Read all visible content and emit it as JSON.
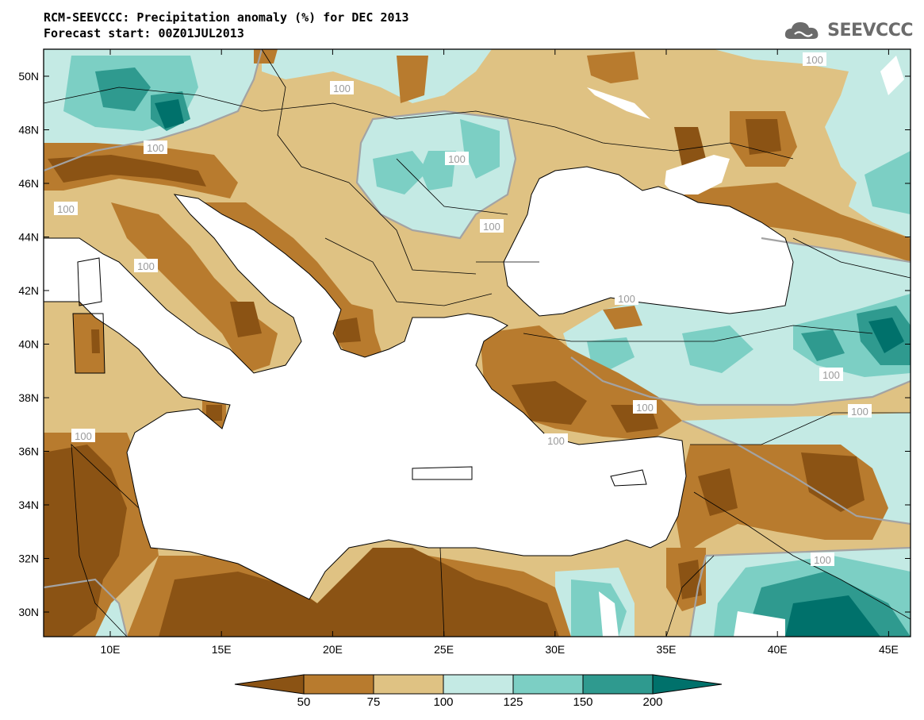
{
  "header": {
    "title_line1": "RCM-SEEVCCC: Precipitation anomaly (%) for DEC 2013",
    "title_line2": "Forecast start: 00Z01JUL2013",
    "logo_text": "SEEVCCC"
  },
  "axes": {
    "lat_labels": [
      "50N",
      "48N",
      "46N",
      "44N",
      "42N",
      "40N",
      "38N",
      "36N",
      "34N",
      "32N",
      "30N"
    ],
    "lon_labels": [
      "10E",
      "15E",
      "20E",
      "25E",
      "30E",
      "35E",
      "40E",
      "45E"
    ]
  },
  "contour_labels": [
    "100",
    "100",
    "100",
    "100",
    "100",
    "100",
    "100",
    "100",
    "100",
    "100",
    "100",
    "100",
    "100",
    "100"
  ],
  "colorbar": {
    "colors": [
      "#8b5314",
      "#b87b2e",
      "#dfc283",
      "#c4eae4",
      "#7ccfc4",
      "#2f9a8f",
      "#00716b"
    ],
    "tick_labels": [
      "50",
      "75",
      "100",
      "125",
      "150",
      "200"
    ]
  },
  "palette": {
    "sea": "#ffffff",
    "coast": "#000000",
    "contour_line": "#a3a3a3"
  }
}
